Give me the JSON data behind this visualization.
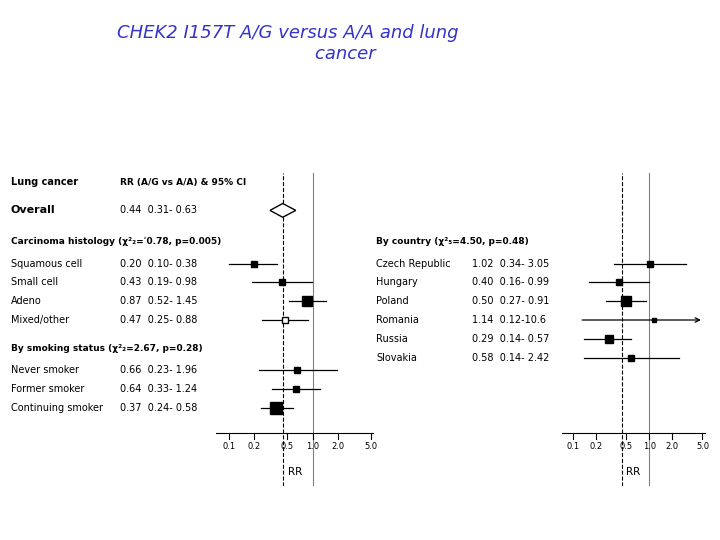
{
  "title_color": "#3333cc",
  "background_color": "#ffffff",
  "left_panel": {
    "header_col1": "Lung cancer",
    "header_col2": "RR (A/G vs A/A) & 95% CI",
    "overall_label": "Overall",
    "overall_rr": 0.44,
    "overall_ci_low": 0.31,
    "overall_ci_high": 0.63,
    "overall_text": "0.44  0.31- 0.63",
    "section1_label": "Carcinoma histology (χ²₂=ʹ0.78, p=0.005)",
    "section1_rows": [
      {
        "label": "Squamous cell",
        "rr": 0.2,
        "ci_low": 0.1,
        "ci_high": 0.38,
        "text": "0.20  0.10- 0.38",
        "filled": true,
        "size": 5
      },
      {
        "label": "Small cell",
        "rr": 0.43,
        "ci_low": 0.19,
        "ci_high": 0.98,
        "text": "0.43  0.19- 0.98",
        "filled": true,
        "size": 5
      },
      {
        "label": "Adeno",
        "rr": 0.87,
        "ci_low": 0.52,
        "ci_high": 1.45,
        "text": "0.87  0.52- 1.45",
        "filled": true,
        "size": 7
      },
      {
        "label": "Mixed/other",
        "rr": 0.47,
        "ci_low": 0.25,
        "ci_high": 0.88,
        "text": "0.47  0.25- 0.88",
        "filled": false,
        "size": 5
      }
    ],
    "section2_label": "By smoking status (χ²₂=2.67, p=0.28)",
    "section2_rows": [
      {
        "label": "Never smoker",
        "rr": 0.66,
        "ci_low": 0.23,
        "ci_high": 1.96,
        "text": "0.66  0.23- 1.96",
        "filled": true,
        "size": 5
      },
      {
        "label": "Former smoker",
        "rr": 0.64,
        "ci_low": 0.33,
        "ci_high": 1.24,
        "text": "0.64  0.33- 1.24",
        "filled": true,
        "size": 5
      },
      {
        "label": "Continuing smoker",
        "rr": 0.37,
        "ci_low": 0.24,
        "ci_high": 0.58,
        "text": "0.37  0.24- 0.58",
        "filled": true,
        "size": 8
      }
    ],
    "x_ticks": [
      0.1,
      0.2,
      0.5,
      1.0,
      2.0,
      5.0
    ],
    "x_tick_labels": [
      "0.1",
      "0.2",
      "0.5",
      "1.0",
      "2.0",
      "5.0"
    ],
    "x_label": "RR"
  },
  "right_panel": {
    "section_label": "By country (χ²₅=4.50, p=0.48)",
    "rows": [
      {
        "label": "Czech Republic",
        "rr": 1.02,
        "ci_low": 0.34,
        "ci_high": 3.05,
        "text": "1.02  0.34- 3.05",
        "size": 5,
        "arrow": false
      },
      {
        "label": "Hungary",
        "rr": 0.4,
        "ci_low": 0.16,
        "ci_high": 0.99,
        "text": "0.40  0.16- 0.99",
        "size": 5,
        "arrow": false
      },
      {
        "label": "Poland",
        "rr": 0.5,
        "ci_low": 0.27,
        "ci_high": 0.91,
        "text": "0.50  0.27- 0.91",
        "size": 7,
        "arrow": false
      },
      {
        "label": "Romania",
        "rr": 1.14,
        "ci_low": 0.12,
        "ci_high": 10.6,
        "text": "1.14  0.12-10.6",
        "size": 3,
        "arrow": true
      },
      {
        "label": "Russia",
        "rr": 0.29,
        "ci_low": 0.14,
        "ci_high": 0.57,
        "text": "0.29  0.14- 0.57",
        "size": 6,
        "arrow": false
      },
      {
        "label": "Slovakia",
        "rr": 0.58,
        "ci_low": 0.14,
        "ci_high": 2.42,
        "text": "0.58  0.14- 2.42",
        "size": 4,
        "arrow": false
      }
    ],
    "x_ticks": [
      0.1,
      0.2,
      0.5,
      1.0,
      2.0,
      5.0
    ],
    "x_tick_labels": [
      "0.1",
      "0.2",
      "0.5",
      "1.0",
      "2.0",
      "5.0"
    ],
    "x_label": "RR"
  }
}
